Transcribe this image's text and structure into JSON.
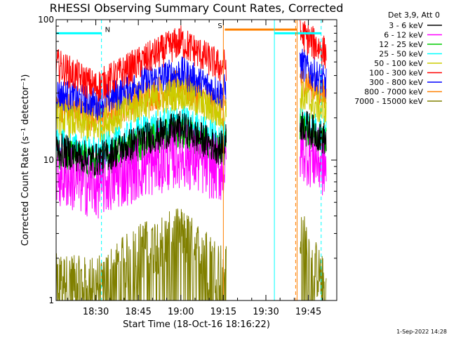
{
  "chart_data": {
    "type": "line",
    "title": "RHESSI Observing Summary Count Rates, Corrected",
    "xlabel": "Start Time (18-Oct-16 18:16:22)",
    "ylabel": "Corrected Count Rate (s⁻¹ detector⁻¹)",
    "yscale": "log",
    "ylim": [
      1,
      100
    ],
    "xlim_minutes": [
      0,
      99
    ],
    "x_unit": "minutes after 18:16:22",
    "yticks": [
      {
        "value": 1,
        "label": "1"
      },
      {
        "value": 10,
        "label": "10"
      },
      {
        "value": 100,
        "label": "100"
      }
    ],
    "xticks": [
      {
        "minute": 14,
        "label": "18:30"
      },
      {
        "minute": 29,
        "label": "18:45"
      },
      {
        "minute": 44,
        "label": "19:00"
      },
      {
        "minute": 59,
        "label": "19:15"
      },
      {
        "minute": 74,
        "label": "19:30"
      },
      {
        "minute": 89,
        "label": "19:45"
      }
    ],
    "legend_header": "Det 3,9, Att 0",
    "legend_position": "right",
    "series": [
      {
        "name": "3 - 6 keV",
        "color": "#000000",
        "values": [
          [
            0,
            12
          ],
          [
            14,
            10
          ],
          [
            30,
            14
          ],
          [
            44,
            17
          ],
          [
            58,
            12
          ],
          [
            60,
            14
          ],
          [
            87,
            18
          ],
          [
            95,
            14
          ]
        ]
      },
      {
        "name": "6 - 12 keV",
        "color": "#ff00ff",
        "values": [
          [
            0,
            8
          ],
          [
            14,
            6.5
          ],
          [
            30,
            9
          ],
          [
            44,
            11
          ],
          [
            58,
            8.5
          ],
          [
            60,
            9
          ],
          [
            87,
            12
          ],
          [
            95,
            9
          ]
        ]
      },
      {
        "name": "12 - 25 keV",
        "color": "#00cc00",
        "values": [
          [
            0,
            11
          ],
          [
            14,
            9.5
          ],
          [
            30,
            13
          ],
          [
            44,
            16
          ],
          [
            58,
            11.5
          ],
          [
            60,
            13
          ],
          [
            87,
            17
          ],
          [
            95,
            13
          ]
        ]
      },
      {
        "name": "25 - 50 keV",
        "color": "#00ffff",
        "values": [
          [
            0,
            13
          ],
          [
            14,
            11
          ],
          [
            30,
            16
          ],
          [
            44,
            19
          ],
          [
            58,
            14
          ],
          [
            60,
            15
          ],
          [
            87,
            19
          ],
          [
            95,
            15
          ]
        ]
      },
      {
        "name": "50 - 100 keV",
        "color": "#cccc00",
        "values": [
          [
            0,
            20
          ],
          [
            14,
            17
          ],
          [
            30,
            25
          ],
          [
            44,
            30
          ],
          [
            58,
            21
          ],
          [
            60,
            22
          ],
          [
            87,
            28
          ],
          [
            95,
            22
          ]
        ]
      },
      {
        "name": "100 - 300 keV",
        "color": "#ff0000",
        "values": [
          [
            0,
            48
          ],
          [
            14,
            33
          ],
          [
            30,
            50
          ],
          [
            44,
            70
          ],
          [
            58,
            46
          ],
          [
            60,
            48
          ],
          [
            87,
            78
          ],
          [
            95,
            58
          ]
        ]
      },
      {
        "name": "300 - 800 keV",
        "color": "#0000ff",
        "values": [
          [
            0,
            30
          ],
          [
            14,
            25
          ],
          [
            30,
            35
          ],
          [
            44,
            42
          ],
          [
            58,
            30
          ],
          [
            60,
            32
          ],
          [
            87,
            48
          ],
          [
            95,
            35
          ]
        ]
      },
      {
        "name": "800 - 7000 keV",
        "color": "#ff8000",
        "values": [
          [
            0,
            25
          ],
          [
            14,
            20
          ],
          [
            30,
            28
          ],
          [
            44,
            34
          ],
          [
            58,
            24
          ],
          [
            60,
            26
          ],
          [
            87,
            38
          ],
          [
            95,
            28
          ]
        ]
      },
      {
        "name": "7000 - 15000 keV",
        "color": "#808000",
        "values": [
          [
            0,
            1.5
          ],
          [
            14,
            1.4
          ],
          [
            30,
            2.5
          ],
          [
            44,
            3.2
          ],
          [
            58,
            1.8
          ],
          [
            60,
            1.7
          ],
          [
            87,
            3
          ],
          [
            95,
            1.3
          ]
        ]
      }
    ],
    "flags": [
      {
        "label": "N",
        "color": "#00ffff",
        "minute_start": 0,
        "minute_end": 16,
        "value": 80
      },
      {
        "label": "S",
        "color": "#ff8000",
        "minute_start": 59.5,
        "minute_end": 85,
        "value": 85
      },
      {
        "label": "",
        "color": "#00ffff",
        "minute_start": 77,
        "minute_end": 93.5,
        "value": 80
      }
    ],
    "vlines": [
      {
        "minute": 16,
        "color": "#00ffff",
        "style": "dashed"
      },
      {
        "minute": 59,
        "color": "#ff8000",
        "style": "solid"
      },
      {
        "minute": 77,
        "color": "#00ffff",
        "style": "solid"
      },
      {
        "minute": 84.5,
        "color": "#ff8000",
        "style": "dashed"
      },
      {
        "minute": 85,
        "color": "#ff8000",
        "style": "solid"
      },
      {
        "minute": 93.5,
        "color": "#00ffff",
        "style": "dashed"
      }
    ],
    "gaps": [
      {
        "minute_start": 60,
        "minute_end": 86
      }
    ]
  },
  "footer": {
    "timestamp": "1-Sep-2022 14:28"
  }
}
